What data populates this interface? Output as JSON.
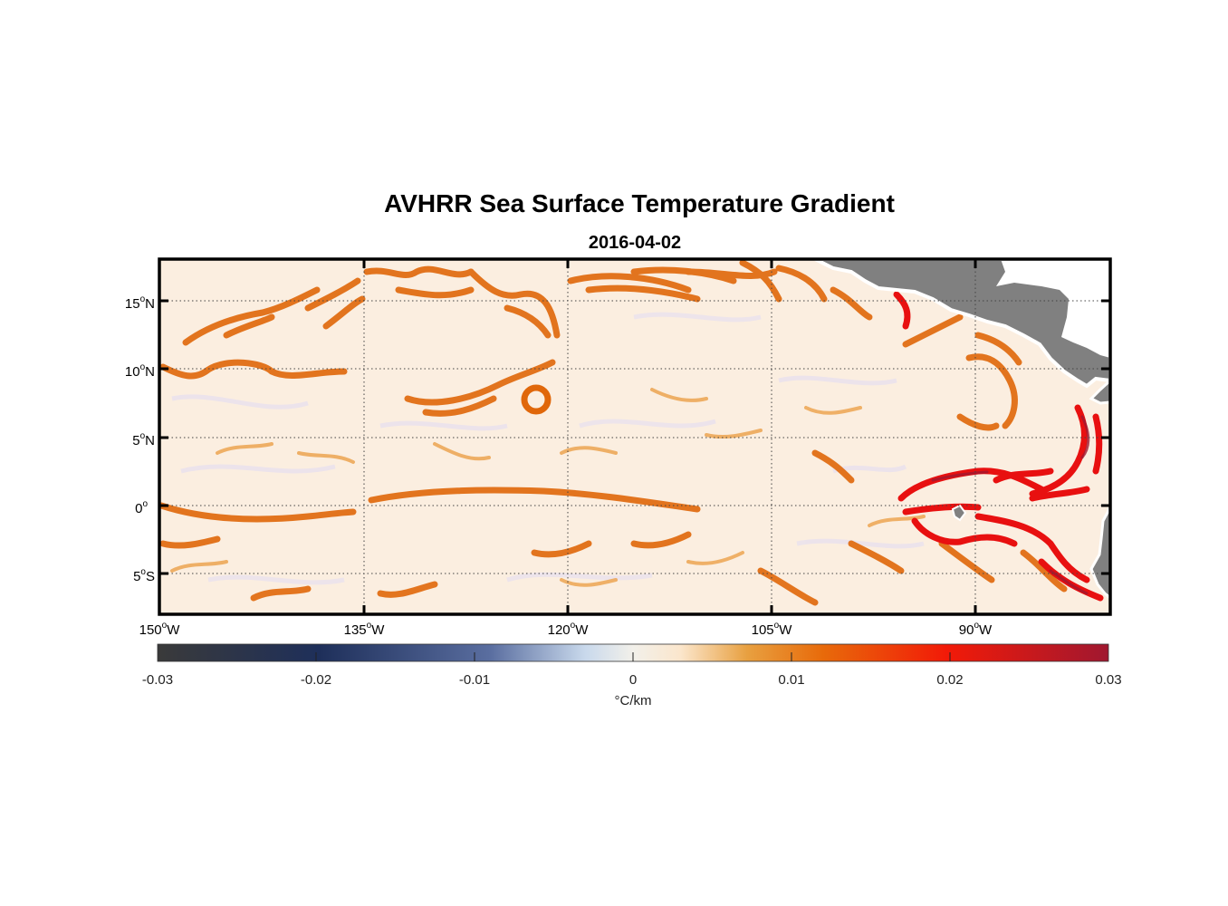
{
  "title": "AVHRR Sea Surface Temperature Gradient",
  "date": "2016-04-02",
  "map": {
    "lon_range": [
      -150,
      -80
    ],
    "lat_range": [
      -8,
      18
    ],
    "x_ticks": [
      {
        "deg": "150",
        "hemi": "W"
      },
      {
        "deg": "135",
        "hemi": "W"
      },
      {
        "deg": "120",
        "hemi": "W"
      },
      {
        "deg": "105",
        "hemi": "W"
      },
      {
        "deg": "90",
        "hemi": "W"
      }
    ],
    "y_ticks": [
      {
        "deg": "15",
        "hemi": "N"
      },
      {
        "deg": "10",
        "hemi": "N"
      },
      {
        "deg": "5",
        "hemi": "N"
      },
      {
        "deg": "0",
        "hemi": ""
      },
      {
        "deg": "5",
        "hemi": "S"
      }
    ],
    "gridlines": "dotted",
    "land_color": "#808080",
    "ocean_background": "#fbeee0",
    "front_color": "#e0670a",
    "strong_front_color": "#e81010"
  },
  "colorbar": {
    "ticks": [
      "-0.03",
      "-0.02",
      "-0.01",
      "0",
      "0.01",
      "0.02",
      "0.03"
    ],
    "units": "°C/km",
    "colors": [
      "#3a3a3a",
      "#1e2f5a",
      "#5a6ea0",
      "#dfe9f2",
      "#fbeee0",
      "#e8901c",
      "#e8560a",
      "#ee1208",
      "#a01830"
    ]
  }
}
